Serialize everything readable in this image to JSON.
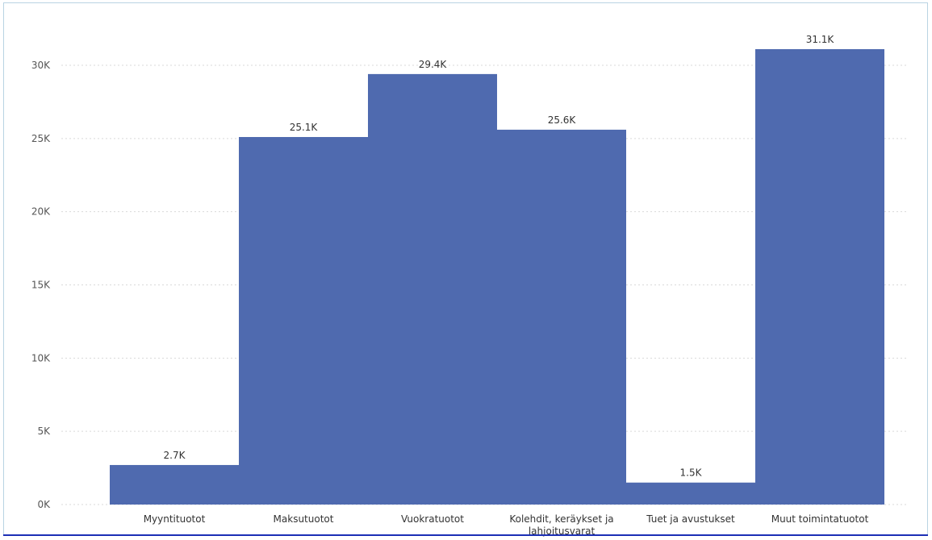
{
  "chart_data": {
    "type": "bar",
    "categories": [
      "Myyntituotot",
      "Maksutuotot",
      "Vuokratuotot",
      "Kolehdit, keräykset ja lahjoitusvarat",
      "Tuet ja avustukset",
      "Muut toimintatuotot"
    ],
    "category_label_lines": [
      [
        "Myyntituotot"
      ],
      [
        "Maksutuotot"
      ],
      [
        "Vuokratuotot"
      ],
      [
        "Kolehdit, keräykset ja",
        "lahjoitusvarat"
      ],
      [
        "Tuet ja avustukset"
      ],
      [
        "Muut toimintatuotot"
      ]
    ],
    "values": [
      2700,
      25100,
      29400,
      25600,
      1500,
      31100
    ],
    "data_labels": [
      "2.7K",
      "25.1K",
      "29.4K",
      "25.6K",
      "1.5K",
      "31.1K"
    ],
    "ylim": [
      0,
      31100
    ],
    "yticks": [
      0,
      5000,
      10000,
      15000,
      20000,
      25000,
      30000
    ],
    "ytick_labels": [
      "0K",
      "5K",
      "10K",
      "15K",
      "20K",
      "25K",
      "30K"
    ],
    "grid": true,
    "bar_color": "#4f6aaf",
    "title": "",
    "xlabel": "",
    "ylabel": ""
  }
}
